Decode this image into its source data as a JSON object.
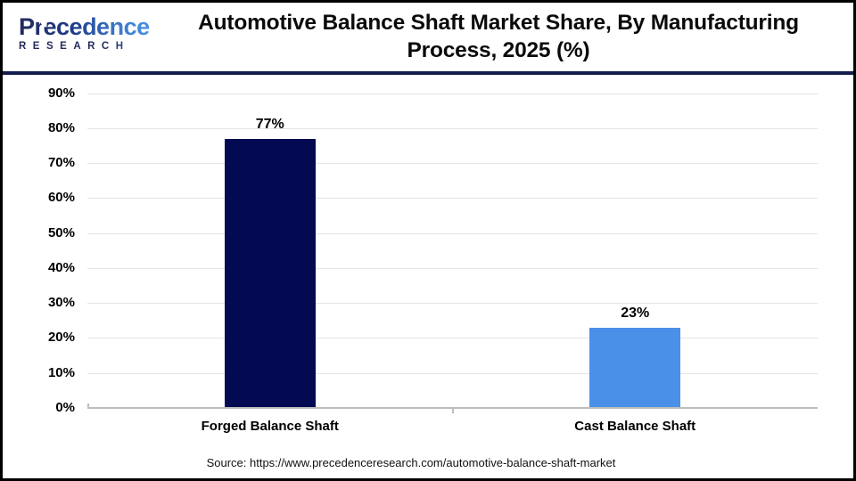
{
  "header": {
    "logo": {
      "name": "Precedence",
      "subtitle": "RESEARCH"
    },
    "title_line1": "Automotive Balance Shaft Market Share, By Manufacturing",
    "title_line2": "Process, 2025 (%)"
  },
  "chart_data": {
    "type": "bar",
    "title": "Automotive Balance Shaft Market Share, By Manufacturing Process, 2025 (%)",
    "categories": [
      "Forged Balance Shaft",
      "Cast Balance Shaft"
    ],
    "values": [
      77,
      23
    ],
    "value_labels": [
      "77%",
      "23%"
    ],
    "xlabel": "",
    "ylabel": "",
    "ylim": [
      0,
      90
    ],
    "ytick_step": 10,
    "ytick_labels": [
      "0%",
      "10%",
      "20%",
      "30%",
      "40%",
      "50%",
      "60%",
      "70%",
      "80%",
      "90%"
    ],
    "grid": true,
    "legend": false,
    "bar_colors": [
      "#040a52",
      "#4a90e8"
    ]
  },
  "footer": {
    "source": "Source: https://www.precedenceresearch.com/automotive-balance-shaft-market"
  },
  "colors": {
    "bar_forged": "#040a52",
    "bar_cast": "#4a90e8",
    "header_rule": "#141d4d",
    "gridline": "#e4e4e4",
    "axis_line": "#bdbdbd",
    "logo_navy": "#232a5c",
    "logo_blue": "#4a90e2"
  }
}
